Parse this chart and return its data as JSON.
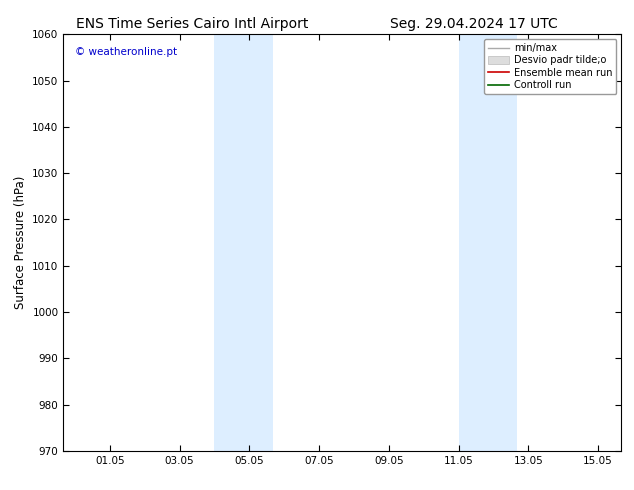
{
  "title_left": "ENS Time Series Cairo Intl Airport",
  "title_right": "Seg. 29.04.2024 17 UTC",
  "ylabel": "Surface Pressure (hPa)",
  "ylim": [
    970,
    1060
  ],
  "yticks": [
    970,
    980,
    990,
    1000,
    1010,
    1020,
    1030,
    1040,
    1050,
    1060
  ],
  "x_tick_labels": [
    "01.05",
    "03.05",
    "05.05",
    "07.05",
    "09.05",
    "11.05",
    "13.05",
    "15.05"
  ],
  "x_tick_positions": [
    1.333,
    3.333,
    5.333,
    7.333,
    9.333,
    11.333,
    13.333,
    15.333
  ],
  "xlim": [
    0.0,
    16.0
  ],
  "shaded_bands": [
    {
      "x_start": 4.0,
      "x_end": 5.333
    },
    {
      "x_start": 5.333,
      "x_end": 6.0
    },
    {
      "x_start": 11.0,
      "x_end": 11.333
    },
    {
      "x_start": 12.0,
      "x_end": 13.333
    }
  ],
  "shade_color": "#ddeeff",
  "background_color": "#ffffff",
  "watermark_text": "© weatheronline.pt",
  "watermark_color": "#0000cc",
  "legend_items": [
    {
      "label": "min/max",
      "color": "#aaaaaa",
      "type": "line"
    },
    {
      "label": "Desvio padr tilde;o",
      "color": "#cccccc",
      "type": "bar"
    },
    {
      "label": "Ensemble mean run",
      "color": "#ff0000",
      "type": "line"
    },
    {
      "label": "Controll run",
      "color": "#006600",
      "type": "line"
    }
  ],
  "title_fontsize": 10,
  "tick_fontsize": 7.5,
  "ylabel_fontsize": 8.5,
  "watermark_fontsize": 7.5,
  "legend_fontsize": 7
}
